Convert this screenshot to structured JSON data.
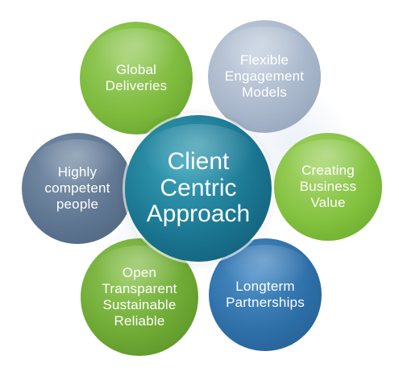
{
  "diagram": {
    "center": {
      "label": "Client\nCentric\nApproach",
      "color": "#1a7590"
    },
    "nodes": [
      {
        "id": "global",
        "label": "Global\nDeliveries",
        "color": "#7dba3c"
      },
      {
        "id": "flexible",
        "label": "Flexible\nEngagement\nModels",
        "color": "#a8b6ca"
      },
      {
        "id": "highly",
        "label": "Highly\ncompetent\npeople",
        "color": "#5e7591"
      },
      {
        "id": "creating",
        "label": "Creating\nBusiness\nValue",
        "color": "#82c13e"
      },
      {
        "id": "open",
        "label": "Open\nTransparent\nSustainable\nReliable",
        "color": "#6ea934"
      },
      {
        "id": "longterm",
        "label": "Longterm\nPartnerships",
        "color": "#2e6fa8"
      }
    ]
  }
}
